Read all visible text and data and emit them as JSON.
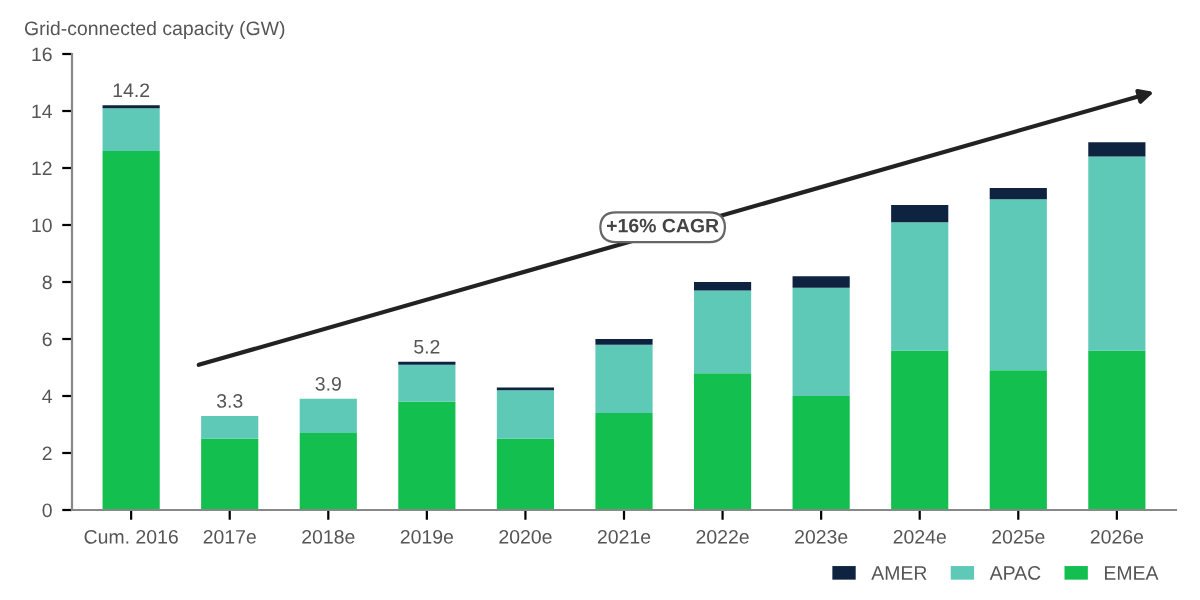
{
  "chart_data": {
    "type": "bar",
    "stacked": true,
    "ylabel": "Grid-connected capacity (GW)",
    "categories": [
      "Cum. 2016",
      "2017e",
      "2018e",
      "2019e",
      "2020e",
      "2021e",
      "2022e",
      "2023e",
      "2024e",
      "2025e",
      "2026e"
    ],
    "series": [
      {
        "name": "EMEA",
        "color": "#13bf4f",
        "values": [
          12.6,
          2.5,
          2.7,
          3.8,
          2.5,
          3.4,
          4.8,
          4.0,
          5.6,
          4.9,
          5.6
        ]
      },
      {
        "name": "APAC",
        "color": "#5dc9b6",
        "values": [
          1.5,
          0.8,
          1.2,
          1.3,
          1.7,
          2.4,
          2.9,
          3.8,
          4.5,
          6.0,
          6.8
        ]
      },
      {
        "name": "AMER",
        "color": "#0d2340",
        "values": [
          0.1,
          0.0,
          0.0,
          0.1,
          0.1,
          0.2,
          0.3,
          0.4,
          0.6,
          0.4,
          0.5
        ]
      }
    ],
    "totals": [
      "14.2",
      "3.3",
      "3.9",
      "5.2",
      null,
      null,
      null,
      null,
      null,
      null,
      null
    ],
    "ylim": [
      0,
      16
    ],
    "yticks": [
      0,
      2,
      4,
      6,
      8,
      10,
      12,
      14,
      16
    ],
    "grid": false,
    "legend": "bottom right",
    "annotations": [
      "+16% CAGR"
    ]
  }
}
